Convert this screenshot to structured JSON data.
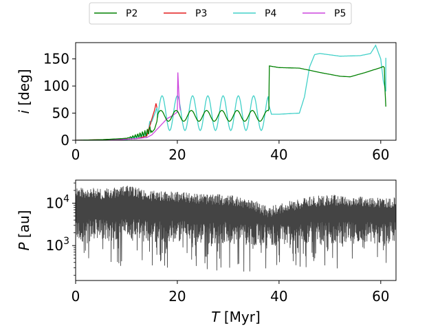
{
  "chart_data": [
    {
      "type": "line",
      "title": "",
      "xlabel": "",
      "ylabel_italic": "i",
      "ylabel_rest": " [deg]",
      "xlim": [
        0,
        63
      ],
      "ylim": [
        0,
        180
      ],
      "xticks": [
        0,
        20,
        40,
        60
      ],
      "yticks": [
        0,
        50,
        100,
        150
      ],
      "xtick_labels": [
        "0",
        "20",
        "40",
        "60"
      ],
      "ytick_labels": [
        "0",
        "50",
        "100",
        "150"
      ],
      "legend": {
        "placement": "top-center",
        "entries": [
          {
            "name": "P2",
            "color": "#008000"
          },
          {
            "name": "P3",
            "color": "#e31a1c"
          },
          {
            "name": "P4",
            "color": "#40d0c8"
          },
          {
            "name": "P5",
            "color": "#cc44dd"
          }
        ]
      },
      "series": [
        {
          "name": "P2",
          "color": "#008000",
          "x": [
            0,
            5,
            9,
            12,
            14,
            15,
            15.5,
            16,
            17,
            18,
            19,
            20,
            21,
            22,
            24,
            26,
            28,
            30,
            32,
            34,
            36,
            37,
            38,
            38.1,
            40,
            44,
            48,
            52,
            54,
            57,
            60,
            60.5,
            60.7,
            60.8,
            61
          ],
          "y": [
            0,
            1,
            3,
            5,
            8,
            15,
            20,
            35,
            38,
            42,
            38,
            45,
            50,
            52,
            48,
            55,
            50,
            52,
            50,
            52,
            48,
            55,
            58,
            137,
            134,
            133,
            125,
            118,
            117,
            125,
            134,
            136,
            134,
            100,
            62
          ]
        },
        {
          "name": "P3",
          "color": "#e31a1c",
          "x": [
            0,
            9,
            12,
            14,
            15,
            15.5,
            15.8,
            16
          ],
          "y": [
            0,
            2,
            3,
            8,
            40,
            55,
            68,
            60
          ]
        },
        {
          "name": "P4",
          "color": "#40d0c8",
          "x": [
            0,
            10,
            14,
            15,
            16,
            17,
            17.5,
            19,
            20,
            22,
            38,
            38.5,
            40,
            44,
            45,
            46,
            47,
            48,
            52,
            56,
            58,
            59,
            60,
            60.5,
            61,
            61
          ],
          "y": [
            0,
            1,
            5,
            35,
            60,
            82,
            84,
            70,
            40,
            75,
            65,
            48,
            48,
            50,
            80,
            135,
            158,
            160,
            155,
            156,
            160,
            175,
            150,
            110,
            90,
            152
          ]
        },
        {
          "name": "P5",
          "color": "#cc44dd",
          "x": [
            0,
            8,
            12,
            14,
            15,
            16,
            17,
            18,
            19,
            20,
            20.1,
            20.3,
            20.5,
            20.6
          ],
          "y": [
            0,
            1,
            3,
            5,
            10,
            20,
            30,
            40,
            45,
            52,
            125,
            85,
            60,
            55
          ]
        }
      ]
    },
    {
      "type": "line",
      "title": "",
      "xlabel_italic": "T",
      "xlabel_rest": " [Myr]",
      "ylabel_italic": "P",
      "ylabel_rest": " [au]",
      "yscale": "log",
      "xlim": [
        0,
        63
      ],
      "ylim": [
        150,
        35000
      ],
      "xticks": [
        0,
        20,
        40,
        60
      ],
      "xtick_labels": [
        "0",
        "20",
        "40",
        "60"
      ],
      "ytick_labels": [
        {
          "value": 1000,
          "base": "10",
          "exp": "3"
        },
        {
          "value": 10000,
          "base": "10",
          "exp": "4"
        }
      ],
      "series": [
        {
          "name": "P",
          "color": "#444444",
          "x": [
            0,
            5,
            10,
            15,
            20,
            25,
            30,
            35,
            38,
            40,
            45,
            50,
            55,
            60,
            63
          ],
          "y_upper": [
            25000,
            22000,
            26000,
            20000,
            19000,
            17000,
            16000,
            12000,
            8000,
            10000,
            14000,
            16000,
            15000,
            14000,
            14000
          ],
          "y_lower": [
            1200,
            1300,
            1300,
            1200,
            1200,
            1100,
            1100,
            1000,
            1000,
            1000,
            1100,
            1100,
            1100,
            1100,
            1100
          ],
          "y_min_spikes": [
            300,
            350,
            300,
            280,
            300,
            260,
            220,
            250,
            300,
            280,
            260,
            250,
            300,
            260,
            300
          ]
        }
      ]
    }
  ]
}
